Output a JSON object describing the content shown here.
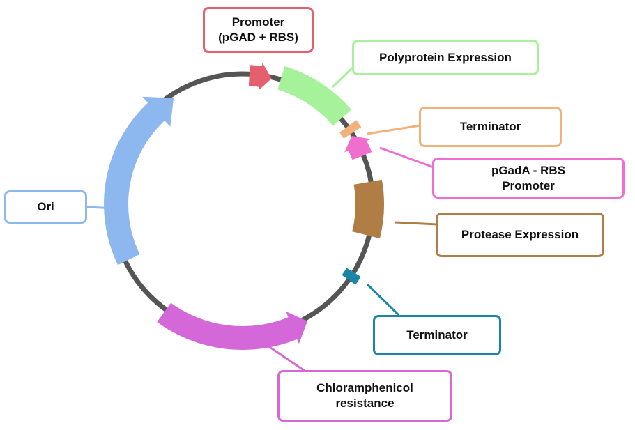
{
  "diagram": {
    "backbone_color": "#555555",
    "features": [
      {
        "id": "promoter",
        "lines": [
          "Promoter",
          "(pGAD + RBS)"
        ],
        "color": "#e4606e",
        "shape": "arrow"
      },
      {
        "id": "polyprotein",
        "lines": [
          "Polyprotein Expression"
        ],
        "color": "#a5f29a",
        "shape": "block"
      },
      {
        "id": "terminator-1",
        "lines": [
          "Terminator"
        ],
        "color": "#f0b27a",
        "shape": "bar"
      },
      {
        "id": "pgada-promoter",
        "lines": [
          "pGadA - RBS",
          "Promoter"
        ],
        "color": "#f06ecf",
        "shape": "arrow"
      },
      {
        "id": "protease",
        "lines": [
          "Protease Expression"
        ],
        "color": "#b07d45",
        "shape": "block"
      },
      {
        "id": "terminator-2",
        "lines": [
          "Terminator"
        ],
        "color": "#1a85a8",
        "shape": "bar"
      },
      {
        "id": "chloramphenicol",
        "lines": [
          "Chloramphenicol",
          "resistance"
        ],
        "color": "#d468d9",
        "shape": "arrow"
      },
      {
        "id": "ori",
        "lines": [
          "Ori"
        ],
        "color": "#8db8ef",
        "shape": "arrow"
      }
    ]
  }
}
